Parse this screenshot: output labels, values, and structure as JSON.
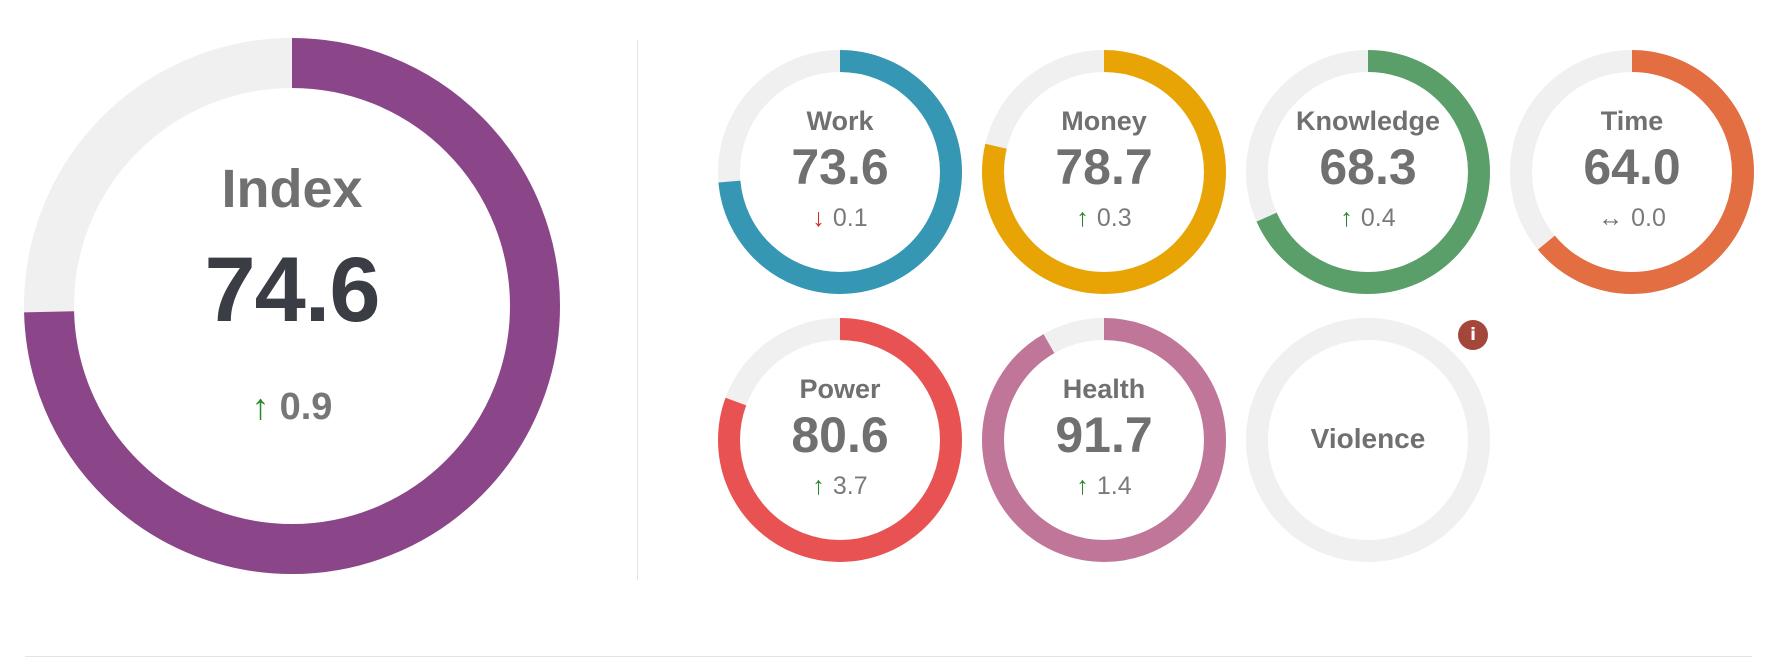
{
  "index": {
    "label": "Index",
    "value": "74.6",
    "value_fraction": 0.746,
    "delta": "0.9",
    "trend": "up",
    "color": "#8a4688"
  },
  "colors": {
    "track": "#f0f0f0",
    "up": "#2a8a2a",
    "down": "#d42b2b",
    "flat": "#707070"
  },
  "domains": [
    {
      "label": "Work",
      "value": "73.6",
      "value_fraction": 0.736,
      "delta": "0.1",
      "trend": "down",
      "color": "#3597b4",
      "arrow_icon": "arrow-down-icon"
    },
    {
      "label": "Money",
      "value": "78.7",
      "value_fraction": 0.787,
      "delta": "0.3",
      "trend": "up",
      "color": "#e7a404",
      "arrow_icon": "arrow-up-icon"
    },
    {
      "label": "Knowledge",
      "value": "68.3",
      "value_fraction": 0.683,
      "delta": "0.4",
      "trend": "up",
      "color": "#5a9e6a",
      "arrow_icon": "arrow-up-icon"
    },
    {
      "label": "Time",
      "value": "64.0",
      "value_fraction": 0.64,
      "delta": "0.0",
      "trend": "flat",
      "color": "#e36e42",
      "arrow_icon": "arrow-left-right-icon"
    },
    {
      "label": "Power",
      "value": "80.6",
      "value_fraction": 0.806,
      "delta": "3.7",
      "trend": "up",
      "color": "#e95253",
      "arrow_icon": "arrow-up-icon"
    },
    {
      "label": "Health",
      "value": "91.7",
      "value_fraction": 0.917,
      "delta": "1.4",
      "trend": "up",
      "color": "#c07698",
      "arrow_icon": "arrow-up-icon"
    }
  ],
  "violence": {
    "label": "Violence",
    "info_glyph": "i",
    "info_icon": "info-icon",
    "info_color": "#a4463a"
  }
}
